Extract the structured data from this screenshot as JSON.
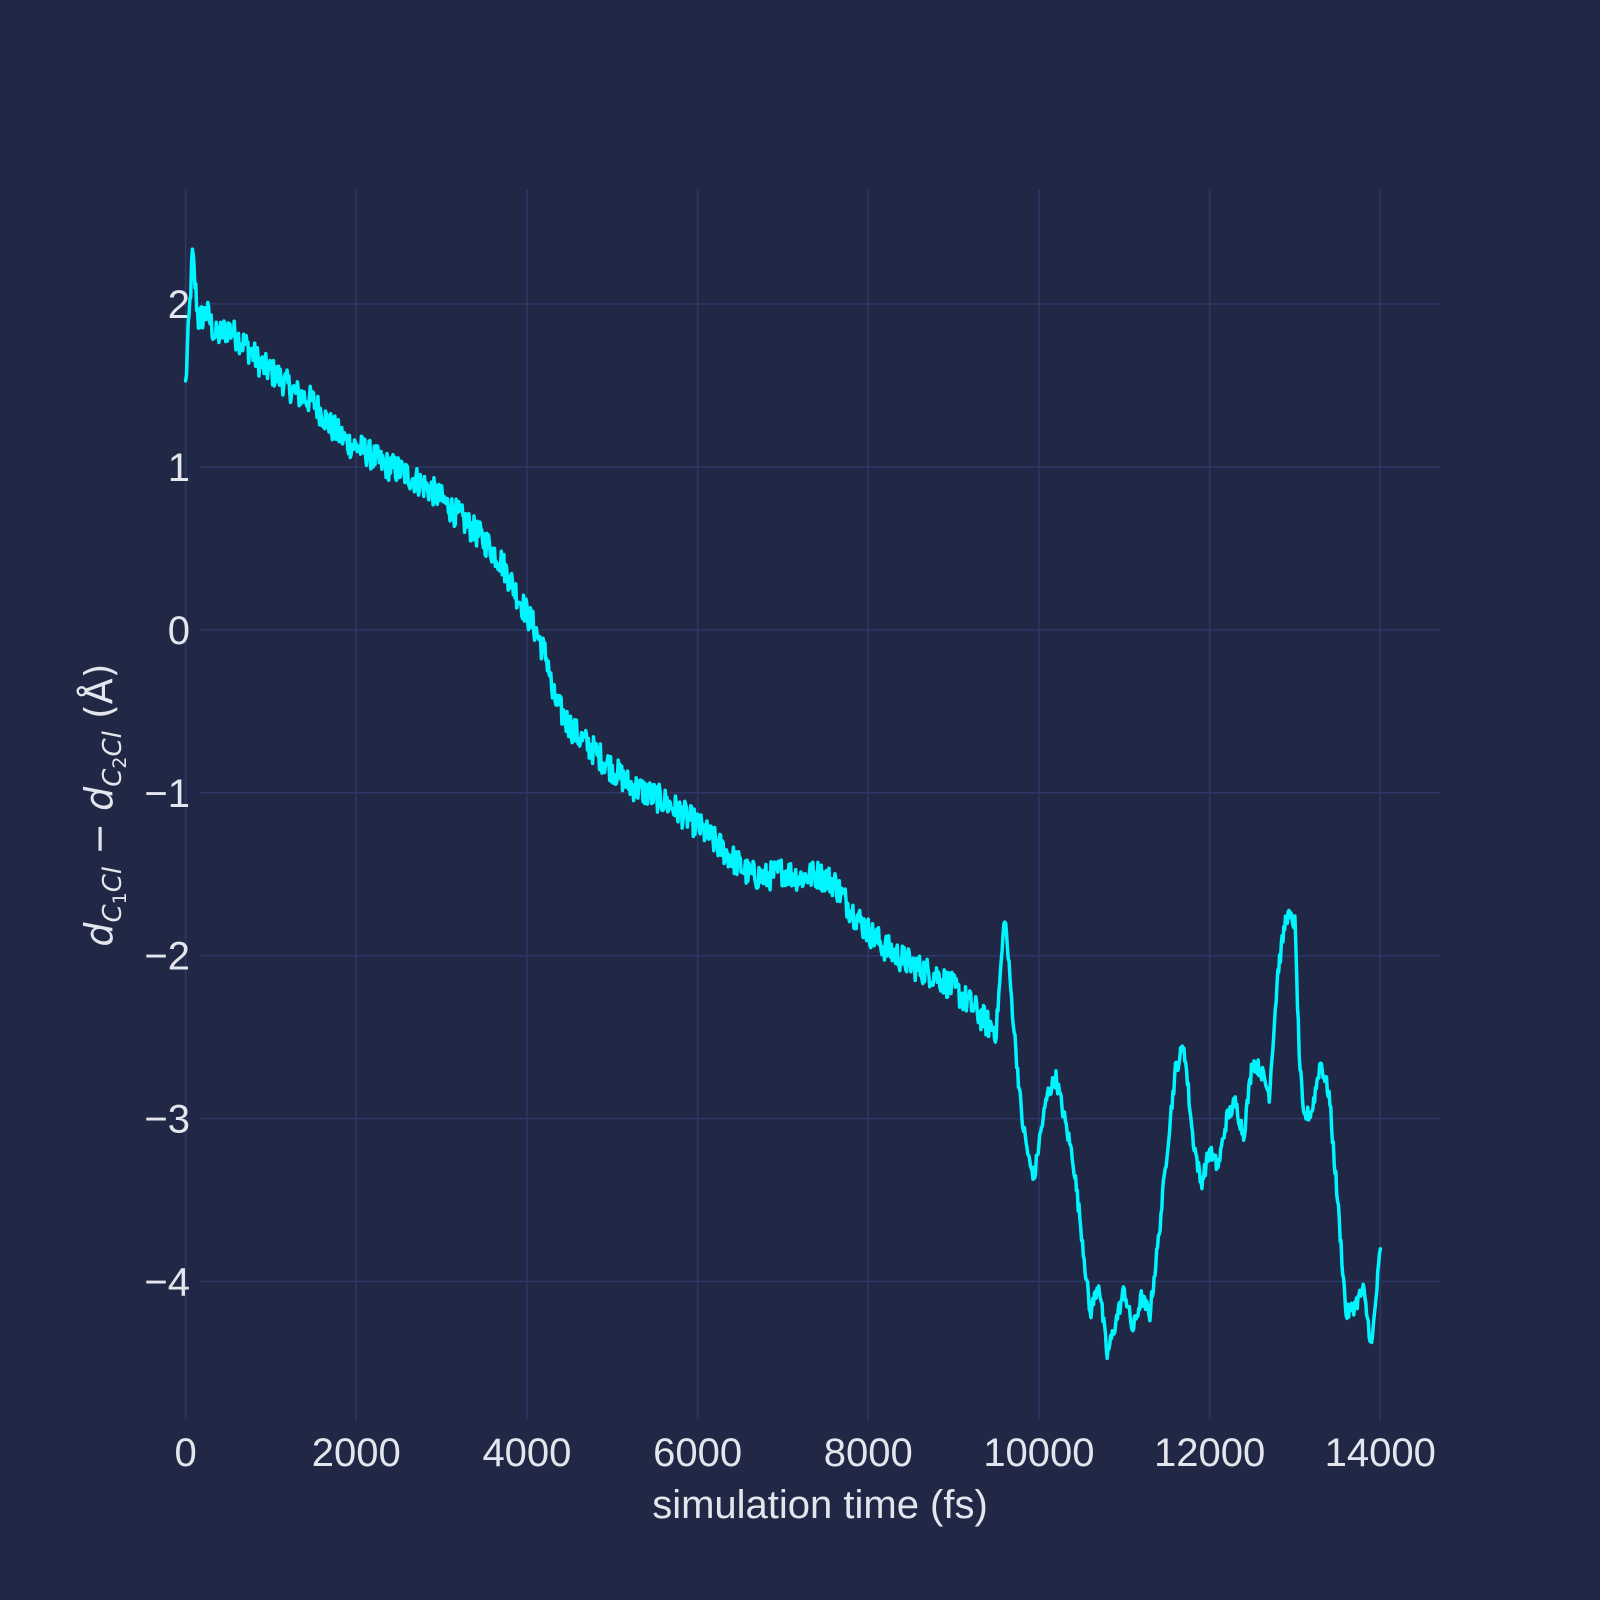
{
  "chart_data": {
    "type": "line",
    "title": "",
    "xlabel": "simulation time (fs)",
    "ylabel": {
      "d1": "d",
      "sub1_letter": "C",
      "sub1_index": "1",
      "sub1_rest": "Cl",
      "minus": " − ",
      "d2": "d",
      "sub2_letter": "C",
      "sub2_index": "2",
      "sub2_rest": "Cl",
      "unit": " (Å)"
    },
    "xlim": [
      -300,
      14700
    ],
    "ylim": [
      -4.85,
      2.7
    ],
    "xticks": [
      0,
      2000,
      4000,
      6000,
      8000,
      10000,
      12000,
      14000
    ],
    "xtick_labels": [
      "0",
      "2000",
      "4000",
      "6000",
      "8000",
      "10000",
      "12000",
      "14000"
    ],
    "yticks": [
      2,
      1,
      0,
      -1,
      -2,
      -3,
      -4
    ],
    "ytick_labels": [
      "2",
      "1",
      "0",
      "−1",
      "−2",
      "−3",
      "−4"
    ],
    "grid": true,
    "series": [
      {
        "color": "#00f5ff",
        "x": [
          0,
          80,
          150,
          250,
          350,
          500,
          700,
          900,
          1100,
          1300,
          1500,
          1700,
          1900,
          2100,
          2300,
          2500,
          2700,
          2900,
          3100,
          3300,
          3500,
          3700,
          3900,
          4100,
          4250,
          4300,
          4450,
          4600,
          4800,
          5000,
          5200,
          5400,
          5600,
          5800,
          6000,
          6200,
          6400,
          6600,
          6800,
          7000,
          7200,
          7400,
          7600,
          7800,
          8000,
          8200,
          8400,
          8600,
          8800,
          9000,
          9200,
          9400,
          9500,
          9600,
          9700,
          9800,
          9900,
          9950,
          10000,
          10100,
          10200,
          10300,
          10400,
          10500,
          10600,
          10700,
          10800,
          10900,
          11000,
          11100,
          11200,
          11300,
          11400,
          11500,
          11600,
          11700,
          11800,
          11900,
          12000,
          12100,
          12200,
          12300,
          12400,
          12500,
          12600,
          12700,
          12800,
          12900,
          13000,
          13050,
          13100,
          13200,
          13300,
          13400,
          13500,
          13600,
          13700,
          13800,
          13900,
          14000
        ],
        "y": [
          1.5,
          2.3,
          1.9,
          1.95,
          1.8,
          1.85,
          1.75,
          1.62,
          1.55,
          1.45,
          1.4,
          1.25,
          1.15,
          1.1,
          1.02,
          0.98,
          0.92,
          0.85,
          0.75,
          0.65,
          0.55,
          0.42,
          0.2,
          0.0,
          -0.2,
          -0.4,
          -0.55,
          -0.65,
          -0.75,
          -0.85,
          -0.95,
          -1.0,
          -1.05,
          -1.12,
          -1.2,
          -1.3,
          -1.4,
          -1.5,
          -1.52,
          -1.48,
          -1.52,
          -1.5,
          -1.55,
          -1.72,
          -1.85,
          -1.95,
          -2.02,
          -2.08,
          -2.12,
          -2.2,
          -2.3,
          -2.42,
          -2.45,
          -1.75,
          -2.4,
          -3.0,
          -3.3,
          -3.35,
          -3.15,
          -2.85,
          -2.75,
          -3.0,
          -3.25,
          -3.7,
          -4.2,
          -4.0,
          -4.45,
          -4.25,
          -4.05,
          -4.3,
          -4.1,
          -4.2,
          -3.75,
          -3.2,
          -2.7,
          -2.55,
          -3.1,
          -3.4,
          -3.2,
          -3.3,
          -3.0,
          -2.9,
          -3.1,
          -2.65,
          -2.7,
          -2.85,
          -2.1,
          -1.75,
          -1.8,
          -2.6,
          -3.0,
          -2.95,
          -2.65,
          -2.85,
          -3.5,
          -4.2,
          -4.15,
          -4.05,
          -4.4,
          -3.8
        ]
      }
    ]
  }
}
